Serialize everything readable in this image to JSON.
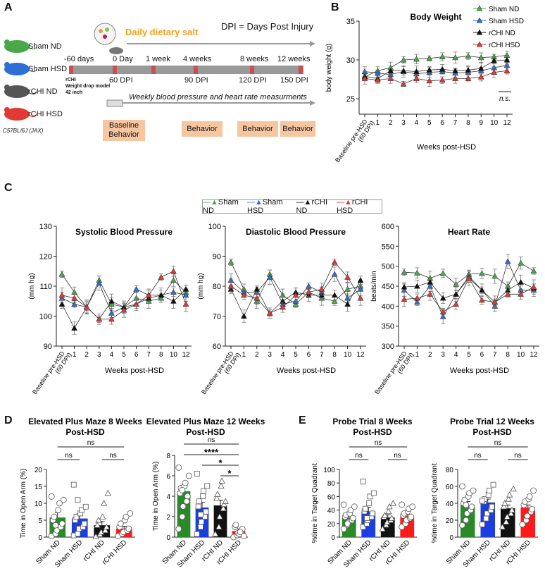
{
  "panelA": {
    "letter": "A",
    "groups": [
      {
        "label": "Sham ND",
        "color": "#49a84a"
      },
      {
        "label": "Sham HSD",
        "color": "#2e6ed6"
      },
      {
        "label": "rCHI ND",
        "color": "#333333"
      },
      {
        "label": "rCHI HSD",
        "color": "#e03a32"
      }
    ],
    "strain": "C57BL/6J (JAX)",
    "dietary_salt": "Daily dietary salt",
    "dpi_def": "DPI = Days Post Injury",
    "timeline_top": [
      "-60 days",
      "0 Day",
      "1 week",
      "4 weeks",
      "8 weeks",
      "12 weeks"
    ],
    "timeline_bottom": [
      "60 DPI",
      "90 DPI",
      "120 DPI",
      "150 DPI"
    ],
    "rchi_label": "rCHI",
    "rchi_model": "Weight drop model",
    "rchi_height": "42 inch",
    "weekly_text": "Weekly blood pressure and heart rate measurments",
    "behavior_boxes": [
      "Baseline Behavior",
      "Behavior",
      "Behavior",
      "Behavior"
    ]
  },
  "panelB": {
    "letter": "B",
    "n_s": "n.s.",
    "chart_data": {
      "type": "line",
      "title": "Body Weight",
      "ylabel": "body weight (g)",
      "xlabel": "Weeks post-HSD",
      "ylim": [
        23,
        35
      ],
      "yticks": [
        25,
        30,
        35
      ],
      "categories": [
        "Baseline pre-HSD (60 DPI)",
        "1",
        "2",
        "3",
        "4",
        "5",
        "6",
        "7",
        "8",
        "9",
        "10",
        "12"
      ],
      "series": [
        {
          "name": "Sham ND",
          "color": "#49a84a",
          "values": [
            27.8,
            28.6,
            29.0,
            30.0,
            30.1,
            30.2,
            30.4,
            30.3,
            30.5,
            30.3,
            30.4,
            30.6
          ]
        },
        {
          "name": "Sham HSD",
          "color": "#2e6ed6",
          "values": [
            28.5,
            28.3,
            28.1,
            28.5,
            28.2,
            28.4,
            28.5,
            28.3,
            28.4,
            28.6,
            29.0,
            29.3
          ]
        },
        {
          "name": "rCHI ND",
          "color": "#111111",
          "values": [
            27.9,
            27.6,
            28.6,
            28.6,
            28.5,
            28.7,
            28.8,
            28.6,
            28.7,
            28.9,
            29.9,
            30.0
          ]
        },
        {
          "name": "rCHI HSD",
          "color": "#e03a32",
          "values": [
            27.6,
            27.4,
            27.6,
            26.9,
            27.6,
            27.3,
            27.4,
            27.6,
            27.6,
            27.8,
            28.4,
            28.6
          ]
        }
      ]
    }
  },
  "panelC": {
    "letter": "C",
    "legend": [
      "Sham ND",
      "Sham HSD",
      "rCHI ND",
      "rCHI HSD"
    ],
    "colors": [
      "#49a84a",
      "#2e6ed6",
      "#111111",
      "#e03a32"
    ],
    "chart_data": [
      {
        "type": "line",
        "title": "Systolic Blood Pressure",
        "ylabel": "(mm hg)",
        "xlabel": "Weeks post-HSD",
        "ylim": [
          90,
          130
        ],
        "yticks": [
          90,
          100,
          110,
          120,
          130
        ],
        "categories": [
          "Baseline pre-HSD (60 DPI)",
          "1",
          "2",
          "3",
          "4",
          "5",
          "6",
          "7",
          "8",
          "10",
          "12"
        ],
        "series": [
          {
            "name": "Sham ND",
            "values": [
              114,
              108,
              103,
              112,
              104,
              103,
              106,
              105,
              106,
              112,
              108
            ]
          },
          {
            "name": "Sham HSD",
            "values": [
              106,
              104,
              103,
              111,
              101,
              103,
              109,
              107,
              107,
              108,
              107
            ]
          },
          {
            "name": "rCHI ND",
            "values": [
              104,
              96,
              103,
              99,
              105,
              103,
              104,
              106,
              107,
              105,
              109
            ]
          },
          {
            "name": "rCHI HSD",
            "values": [
              107,
              106,
              103,
              99,
              99,
              102,
              104,
              107,
              113,
              115,
              104
            ]
          }
        ]
      },
      {
        "type": "line",
        "title": "Diastolic Blood Pressure",
        "ylabel": "(mm hg)",
        "xlabel": "Weeks post-HSD",
        "ylim": [
          60,
          100
        ],
        "yticks": [
          60,
          70,
          80,
          90,
          100
        ],
        "categories": [
          "Baseline pre-HSD (60 DPI)",
          "1",
          "2",
          "3",
          "4",
          "5",
          "6",
          "7",
          "8",
          "10",
          "12"
        ],
        "series": [
          {
            "name": "Sham ND",
            "values": [
              88,
              79,
              75,
              84,
              77,
              74,
              78,
              76,
              75,
              79,
              80
            ]
          },
          {
            "name": "Sham HSD",
            "values": [
              82,
              78,
              78,
              83,
              74,
              75,
              80,
              78,
              84,
              76,
              79
            ]
          },
          {
            "name": "rCHI ND",
            "values": [
              79,
              70,
              79,
              71,
              75,
              78,
              77,
              77,
              77,
              74,
              82
            ]
          },
          {
            "name": "rCHI HSD",
            "values": [
              80,
              77,
              76,
              71,
              73,
              77,
              78,
              79,
              88,
              83,
              76
            ]
          }
        ]
      },
      {
        "type": "line",
        "title": "Heart Rate",
        "ylabel": "beats/min",
        "xlabel": "Weeks post-HSD",
        "ylim": [
          300,
          600
        ],
        "yticks": [
          300,
          350,
          400,
          450,
          500,
          550,
          600
        ],
        "categories": [
          "Baseline pre-HSD (60 DPI)",
          "1",
          "2",
          "3",
          "4",
          "5",
          "6",
          "7",
          "8",
          "10",
          "12"
        ],
        "series": [
          {
            "name": "Sham ND",
            "values": [
              485,
              483,
              470,
              482,
              455,
              480,
              482,
              475,
              450,
              508,
              488
            ]
          },
          {
            "name": "Sham HSD",
            "values": [
              440,
              410,
              450,
              374,
              430,
              475,
              440,
              400,
              512,
              440,
              440
            ]
          },
          {
            "name": "rCHI ND",
            "values": [
              448,
              450,
              460,
              420,
              430,
              470,
              440,
              410,
              440,
              460,
              445
            ]
          },
          {
            "name": "rCHI HSD",
            "values": [
              417,
              420,
              430,
              386,
              405,
              470,
              415,
              410,
              430,
              430,
              448
            ]
          }
        ]
      }
    ]
  },
  "panelD": {
    "letter": "D",
    "chart_data": [
      {
        "type": "bar",
        "title": "Elevated Plus Maze 8 Weeks Post-HSD",
        "ylabel": "Time in Open Arm (%)",
        "ylim": [
          0,
          20
        ],
        "yticks": [
          0,
          5,
          10,
          15,
          20
        ],
        "categories": [
          "Sham ND",
          "Sham HSD",
          "rCHI ND",
          "rCHI HSD"
        ],
        "values": [
          5.8,
          5.5,
          3.5,
          2.5
        ],
        "errors": [
          1.5,
          1.4,
          1.1,
          0.7
        ],
        "points": [
          [
            0.3,
            1,
            2,
            3,
            4,
            5,
            6,
            8,
            10,
            11,
            12,
            3.5
          ],
          [
            0.5,
            1,
            2.5,
            3,
            4,
            5,
            6,
            7,
            8,
            9,
            15.5,
            11
          ],
          [
            0.2,
            0.8,
            1.5,
            2,
            3,
            3.5,
            5,
            6,
            10,
            13
          ],
          [
            0.3,
            1,
            1.5,
            2,
            2.5,
            3,
            4,
            5,
            6,
            7
          ]
        ],
        "significance": [
          {
            "from": 0,
            "to": 3,
            "label": "ns"
          },
          {
            "from": 0,
            "to": 1,
            "label": "ns"
          },
          {
            "from": 2,
            "to": 3,
            "label": "ns"
          }
        ]
      },
      {
        "type": "bar",
        "title": "Elevated Plus Maze 12 Weeks Post-HSD",
        "ylabel": "Time in Open Arm (%)",
        "ylim": [
          0,
          8
        ],
        "yticks": [
          0,
          2,
          4,
          6,
          8
        ],
        "categories": [
          "Sham ND",
          "Sham HSD",
          "rCHI ND",
          "rCHI HSD"
        ],
        "values": [
          4.5,
          2.9,
          3.1,
          0.6
        ],
        "errors": [
          0.4,
          0.5,
          0.5,
          0.2
        ],
        "points": [
          [
            0.8,
            2,
            3,
            3.5,
            4,
            4.3,
            4.8,
            5,
            5.3,
            6,
            6.8,
            4.6
          ],
          [
            0.3,
            1,
            1.5,
            2,
            2.5,
            3,
            3.5,
            4,
            4.5,
            5,
            6.2,
            2.2
          ],
          [
            0.3,
            1,
            2,
            2.8,
            3.2,
            3.8,
            4.2,
            5,
            5.5,
            3.5
          ],
          [
            0,
            0.2,
            0.4,
            0.6,
            0.8,
            1.0,
            1.2,
            0.3,
            0.5,
            0.1
          ]
        ],
        "significance": [
          {
            "from": 0,
            "to": 3,
            "label": "ns"
          },
          {
            "from": 0,
            "to": 3,
            "label": "****"
          },
          {
            "from": 1,
            "to": 3,
            "label": "*"
          },
          {
            "from": 2,
            "to": 3,
            "label": "*"
          }
        ]
      }
    ]
  },
  "panelE": {
    "letter": "E",
    "chart_data": [
      {
        "type": "bar",
        "title": "Probe Trial 8 Weeks Post-HSD",
        "ylabel": "%time in Target Quadrant",
        "ylim": [
          0,
          100
        ],
        "yticks": [
          0,
          20,
          40,
          60,
          80,
          100
        ],
        "categories": [
          "Sham ND",
          "Sham HSD",
          "rCHI ND",
          "rCHI HSD"
        ],
        "values": [
          29,
          38,
          29,
          31
        ],
        "errors": [
          4,
          6,
          4,
          3
        ],
        "points": [
          [
            12,
            18,
            22,
            25,
            28,
            30,
            33,
            35,
            40,
            45,
            48,
            20
          ],
          [
            15,
            20,
            25,
            30,
            35,
            38,
            42,
            50,
            60,
            65,
            82,
            28
          ],
          [
            12,
            18,
            22,
            25,
            28,
            30,
            32,
            38,
            45,
            50
          ],
          [
            15,
            20,
            25,
            28,
            30,
            32,
            35,
            38,
            42,
            45,
            48
          ]
        ],
        "significance": [
          {
            "from": 0,
            "to": 3,
            "label": "ns"
          },
          {
            "from": 0,
            "to": 1,
            "label": "ns"
          },
          {
            "from": 2,
            "to": 3,
            "label": "ns"
          }
        ]
      },
      {
        "type": "bar",
        "title": "Probe Trial 12 Weeks Post-HSD",
        "ylabel": "%time in Target Quadrant",
        "ylim": [
          0,
          80
        ],
        "yticks": [
          0,
          20,
          40,
          60,
          80
        ],
        "categories": [
          "Sham ND",
          "Sham HSD",
          "rCHI ND",
          "rCHI HSD"
        ],
        "values": [
          38,
          41,
          34,
          35
        ],
        "errors": [
          4,
          4,
          4,
          3
        ],
        "points": [
          [
            14,
            20,
            28,
            32,
            36,
            40,
            44,
            48,
            52,
            55,
            60,
            38
          ],
          [
            15,
            22,
            28,
            32,
            36,
            42,
            45,
            50,
            55,
            62,
            43
          ],
          [
            12,
            18,
            24,
            28,
            32,
            36,
            40,
            45,
            50,
            57
          ],
          [
            15,
            20,
            25,
            30,
            33,
            38,
            42,
            45,
            48,
            55
          ]
        ],
        "significance": [
          {
            "from": 0,
            "to": 3,
            "label": "ns"
          },
          {
            "from": 0,
            "to": 1,
            "label": "ns"
          },
          {
            "from": 2,
            "to": 3,
            "label": "ns"
          }
        ]
      }
    ]
  }
}
